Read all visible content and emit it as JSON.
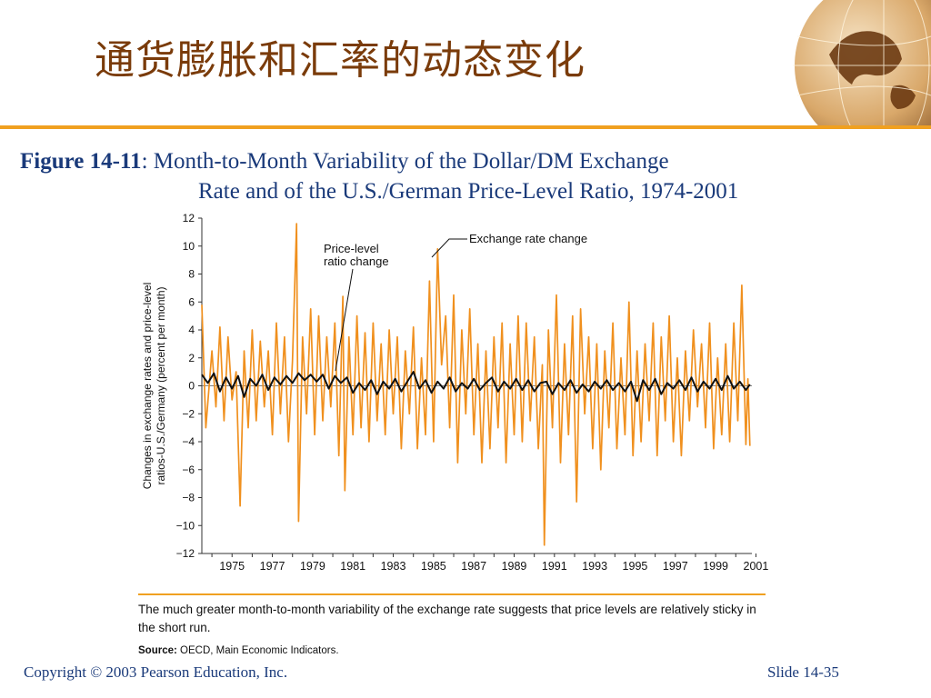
{
  "slide": {
    "title": "通货膨胀和汇率的动态变化",
    "figure_label": "Figure 14-11",
    "caption_line1": ": Month-to-Month Variability of the Dollar/DM Exchange",
    "caption_line2": "Rate and of the U.S./German Price-Level Ratio, 1974-2001",
    "note": "The much greater month-to-month variability of the exchange rate suggests that price levels are relatively sticky in the short run.",
    "source_label": "Source:",
    "source_text": "OECD, Main Economic Indicators.",
    "copyright": "Copyright © 2003 Pearson Education, Inc.",
    "slide_number": "Slide 14-35"
  },
  "colors": {
    "title": "#7a3b0a",
    "accent": "#f0a020",
    "text": "#1a3a7a",
    "exchange_series": "#f0901e",
    "price_series": "#111111"
  },
  "chart_data": {
    "type": "line",
    "ylabel": "Changes in exchange rates and price-level ratios-U.S./Germany (percent per month)",
    "xlim": [
      1974,
      2001.3
    ],
    "ylim": [
      -12,
      12
    ],
    "xticks": [
      "1975",
      "1977",
      "1979",
      "1981",
      "1983",
      "1985",
      "1987",
      "1989",
      "1991",
      "1993",
      "1995",
      "1997",
      "1999",
      "2001"
    ],
    "yticks": [
      "12",
      "10",
      "8",
      "6",
      "4",
      "2",
      "0",
      "−2",
      "−4",
      "−6",
      "−8",
      "−10",
      "−12"
    ],
    "annotations": [
      {
        "text": [
          "Price-level",
          "ratio change"
        ],
        "series": "price"
      },
      {
        "text": [
          "Exchange rate change"
        ],
        "series": "exchange"
      }
    ],
    "series": [
      {
        "key": "exchange",
        "values": [
          [
            1974.0,
            5.8
          ],
          [
            1974.2,
            -3.0
          ],
          [
            1974.5,
            2.5
          ],
          [
            1974.7,
            -1.5
          ],
          [
            1974.9,
            4.2
          ],
          [
            1975.1,
            -2.5
          ],
          [
            1975.3,
            3.5
          ],
          [
            1975.5,
            -1.0
          ],
          [
            1975.7,
            1.0
          ],
          [
            1975.9,
            -8.6
          ],
          [
            1976.1,
            2.5
          ],
          [
            1976.3,
            -3.0
          ],
          [
            1976.5,
            4.0
          ],
          [
            1976.7,
            -2.5
          ],
          [
            1976.9,
            3.2
          ],
          [
            1977.1,
            -1.5
          ],
          [
            1977.3,
            2.5
          ],
          [
            1977.5,
            -3.5
          ],
          [
            1977.7,
            4.5
          ],
          [
            1977.9,
            -2.0
          ],
          [
            1978.1,
            3.5
          ],
          [
            1978.3,
            -4.0
          ],
          [
            1978.5,
            1.8
          ],
          [
            1978.7,
            11.6
          ],
          [
            1978.8,
            -9.7
          ],
          [
            1979.0,
            3.5
          ],
          [
            1979.2,
            -2.0
          ],
          [
            1979.4,
            5.5
          ],
          [
            1979.6,
            -3.5
          ],
          [
            1979.8,
            5.0
          ],
          [
            1980.0,
            -2.5
          ],
          [
            1980.2,
            3.5
          ],
          [
            1980.4,
            -1.5
          ],
          [
            1980.6,
            4.5
          ],
          [
            1980.8,
            -5.0
          ],
          [
            1981.0,
            6.4
          ],
          [
            1981.1,
            -7.5
          ],
          [
            1981.3,
            3.5
          ],
          [
            1981.5,
            -3.5
          ],
          [
            1981.7,
            5.0
          ],
          [
            1981.9,
            -3.0
          ],
          [
            1982.1,
            3.8
          ],
          [
            1982.3,
            -4.0
          ],
          [
            1982.5,
            4.5
          ],
          [
            1982.7,
            -2.5
          ],
          [
            1982.9,
            3.0
          ],
          [
            1983.1,
            -3.5
          ],
          [
            1983.3,
            4.0
          ],
          [
            1983.5,
            -2.0
          ],
          [
            1983.7,
            3.5
          ],
          [
            1983.9,
            -4.5
          ],
          [
            1984.1,
            2.5
          ],
          [
            1984.3,
            -2.0
          ],
          [
            1984.5,
            4.2
          ],
          [
            1984.7,
            -4.5
          ],
          [
            1984.9,
            2.0
          ],
          [
            1985.1,
            -3.5
          ],
          [
            1985.3,
            7.5
          ],
          [
            1985.5,
            -4.0
          ],
          [
            1985.7,
            9.8
          ],
          [
            1985.9,
            1.5
          ],
          [
            1986.1,
            5.0
          ],
          [
            1986.3,
            -3.0
          ],
          [
            1986.5,
            6.5
          ],
          [
            1986.7,
            -5.5
          ],
          [
            1986.9,
            4.0
          ],
          [
            1987.1,
            -2.0
          ],
          [
            1987.3,
            5.5
          ],
          [
            1987.5,
            -3.5
          ],
          [
            1987.7,
            3.0
          ],
          [
            1987.9,
            -5.5
          ],
          [
            1988.1,
            2.5
          ],
          [
            1988.3,
            -4.5
          ],
          [
            1988.5,
            3.5
          ],
          [
            1988.7,
            -3.0
          ],
          [
            1988.9,
            4.5
          ],
          [
            1989.1,
            -5.5
          ],
          [
            1989.3,
            3.0
          ],
          [
            1989.5,
            -3.5
          ],
          [
            1989.7,
            5.0
          ],
          [
            1989.9,
            -4.0
          ],
          [
            1990.1,
            4.5
          ],
          [
            1990.3,
            -2.5
          ],
          [
            1990.5,
            3.5
          ],
          [
            1990.7,
            -4.5
          ],
          [
            1990.9,
            1.5
          ],
          [
            1991.0,
            -11.4
          ],
          [
            1991.2,
            4.0
          ],
          [
            1991.4,
            -3.0
          ],
          [
            1991.6,
            6.5
          ],
          [
            1991.8,
            -5.5
          ],
          [
            1992.0,
            3.0
          ],
          [
            1992.2,
            -3.5
          ],
          [
            1992.4,
            5.0
          ],
          [
            1992.6,
            -8.3
          ],
          [
            1992.8,
            5.5
          ],
          [
            1993.0,
            -2.0
          ],
          [
            1993.2,
            3.5
          ],
          [
            1993.4,
            -4.5
          ],
          [
            1993.6,
            3.0
          ],
          [
            1993.8,
            -6.0
          ],
          [
            1994.0,
            2.5
          ],
          [
            1994.2,
            -3.0
          ],
          [
            1994.4,
            4.5
          ],
          [
            1994.6,
            -4.5
          ],
          [
            1994.8,
            2.0
          ],
          [
            1995.0,
            -3.5
          ],
          [
            1995.2,
            6.0
          ],
          [
            1995.4,
            -5.0
          ],
          [
            1995.6,
            2.5
          ],
          [
            1995.8,
            -4.0
          ],
          [
            1996.0,
            3.0
          ],
          [
            1996.2,
            -2.5
          ],
          [
            1996.4,
            4.5
          ],
          [
            1996.6,
            -5.0
          ],
          [
            1996.8,
            3.5
          ],
          [
            1997.0,
            -2.5
          ],
          [
            1997.2,
            5.0
          ],
          [
            1997.4,
            -4.0
          ],
          [
            1997.6,
            2.0
          ],
          [
            1997.8,
            -5.0
          ],
          [
            1998.0,
            2.5
          ],
          [
            1998.2,
            -2.5
          ],
          [
            1998.4,
            4.0
          ],
          [
            1998.6,
            -1.5
          ],
          [
            1998.8,
            3.0
          ],
          [
            1999.0,
            -3.0
          ],
          [
            1999.2,
            4.5
          ],
          [
            1999.4,
            -4.5
          ],
          [
            1999.6,
            2.0
          ],
          [
            1999.8,
            -3.5
          ],
          [
            2000.0,
            3.0
          ],
          [
            2000.2,
            -4.0
          ],
          [
            2000.4,
            4.5
          ],
          [
            2000.6,
            -2.5
          ],
          [
            2000.8,
            7.2
          ],
          [
            2001.0,
            -4.2
          ],
          [
            2001.1,
            0.5
          ],
          [
            2001.2,
            -4.3
          ]
        ]
      },
      {
        "key": "price",
        "values": [
          [
            1974.0,
            0.8
          ],
          [
            1974.3,
            0.2
          ],
          [
            1974.6,
            0.9
          ],
          [
            1974.9,
            -0.4
          ],
          [
            1975.2,
            0.6
          ],
          [
            1975.5,
            -0.2
          ],
          [
            1975.8,
            0.7
          ],
          [
            1976.1,
            -0.8
          ],
          [
            1976.4,
            0.5
          ],
          [
            1976.7,
            0.0
          ],
          [
            1977.0,
            0.8
          ],
          [
            1977.3,
            -0.3
          ],
          [
            1977.6,
            0.6
          ],
          [
            1977.9,
            0.1
          ],
          [
            1978.2,
            0.7
          ],
          [
            1978.5,
            0.2
          ],
          [
            1978.8,
            0.9
          ],
          [
            1979.1,
            0.4
          ],
          [
            1979.4,
            0.8
          ],
          [
            1979.7,
            0.3
          ],
          [
            1980.0,
            0.8
          ],
          [
            1980.3,
            -0.2
          ],
          [
            1980.6,
            0.7
          ],
          [
            1980.9,
            0.2
          ],
          [
            1981.2,
            0.6
          ],
          [
            1981.5,
            -0.5
          ],
          [
            1981.8,
            0.2
          ],
          [
            1982.1,
            -0.3
          ],
          [
            1982.4,
            0.4
          ],
          [
            1982.7,
            -0.6
          ],
          [
            1983.0,
            0.3
          ],
          [
            1983.3,
            -0.2
          ],
          [
            1983.6,
            0.5
          ],
          [
            1983.9,
            -0.4
          ],
          [
            1984.2,
            0.3
          ],
          [
            1984.5,
            1.0
          ],
          [
            1984.8,
            -0.2
          ],
          [
            1985.1,
            0.4
          ],
          [
            1985.4,
            -0.5
          ],
          [
            1985.7,
            0.3
          ],
          [
            1986.0,
            -0.2
          ],
          [
            1986.3,
            0.6
          ],
          [
            1986.6,
            -0.4
          ],
          [
            1986.9,
            0.2
          ],
          [
            1987.2,
            -0.2
          ],
          [
            1987.5,
            0.5
          ],
          [
            1987.8,
            -0.3
          ],
          [
            1988.1,
            0.2
          ],
          [
            1988.4,
            0.6
          ],
          [
            1988.7,
            -0.4
          ],
          [
            1989.0,
            0.3
          ],
          [
            1989.3,
            -0.2
          ],
          [
            1989.6,
            0.5
          ],
          [
            1989.9,
            -0.3
          ],
          [
            1990.2,
            0.4
          ],
          [
            1990.5,
            -0.4
          ],
          [
            1990.8,
            0.2
          ],
          [
            1991.1,
            0.3
          ],
          [
            1991.4,
            -0.6
          ],
          [
            1991.7,
            0.2
          ],
          [
            1992.0,
            -0.3
          ],
          [
            1992.3,
            0.4
          ],
          [
            1992.6,
            -0.5
          ],
          [
            1992.9,
            0.1
          ],
          [
            1993.2,
            -0.4
          ],
          [
            1993.5,
            0.3
          ],
          [
            1993.8,
            -0.2
          ],
          [
            1994.1,
            0.4
          ],
          [
            1994.4,
            -0.3
          ],
          [
            1994.7,
            0.2
          ],
          [
            1995.0,
            -0.4
          ],
          [
            1995.3,
            0.3
          ],
          [
            1995.6,
            -1.1
          ],
          [
            1995.9,
            0.4
          ],
          [
            1996.2,
            -0.3
          ],
          [
            1996.5,
            0.5
          ],
          [
            1996.8,
            -0.6
          ],
          [
            1997.1,
            0.2
          ],
          [
            1997.4,
            -0.2
          ],
          [
            1997.7,
            0.4
          ],
          [
            1998.0,
            -0.3
          ],
          [
            1998.3,
            0.6
          ],
          [
            1998.6,
            -0.4
          ],
          [
            1998.9,
            0.3
          ],
          [
            1999.2,
            -0.2
          ],
          [
            1999.5,
            0.5
          ],
          [
            1999.8,
            -0.3
          ],
          [
            2000.1,
            0.7
          ],
          [
            2000.4,
            -0.2
          ],
          [
            2000.7,
            0.3
          ],
          [
            2001.0,
            -0.3
          ],
          [
            2001.2,
            0.1
          ]
        ]
      }
    ]
  }
}
